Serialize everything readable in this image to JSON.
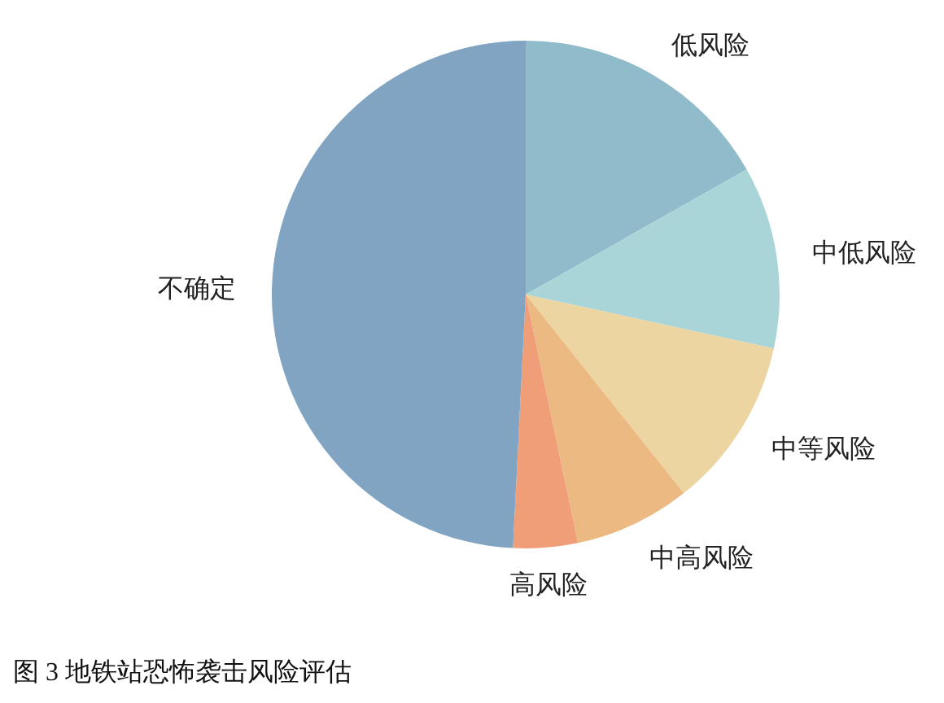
{
  "chart_data": {
    "type": "pie",
    "title": "图 3 地铁站恐怖袭击风险评估",
    "categories": [
      "低风险",
      "中低风险",
      "中等风险",
      "中高风险",
      "高风险",
      "不确定"
    ],
    "values": [
      16.8,
      11.6,
      10.9,
      7.4,
      4.1,
      49.2
    ],
    "colors": [
      "#8fbbcb",
      "#aad5d8",
      "#ecd5a0",
      "#ecb982",
      "#ef9e78",
      "#81a4c2"
    ],
    "legend": false
  }
}
